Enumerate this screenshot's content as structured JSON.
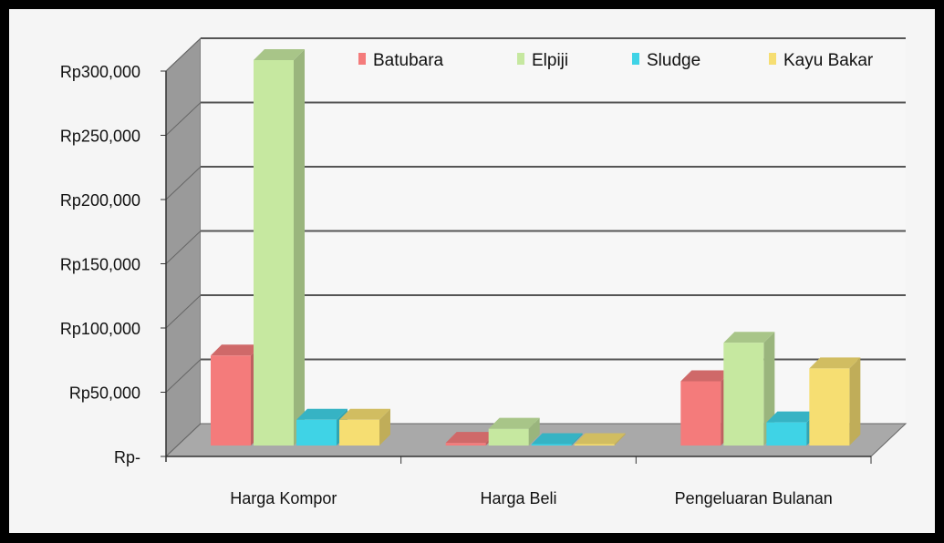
{
  "chart_data": {
    "type": "bar",
    "three_d": true,
    "title": "",
    "xlabel": "",
    "ylabel": "",
    "categories": [
      "Harga Kompor",
      "Harga Beli",
      "Pengeluaran Bulanan"
    ],
    "ylim": [
      0,
      300000
    ],
    "y_ticks": [
      0,
      50000,
      100000,
      150000,
      200000,
      250000,
      300000
    ],
    "y_tick_labels": [
      "Rp-",
      "Rp50,000",
      "Rp100,000",
      "Rp150,000",
      "Rp200,000",
      "Rp250,000",
      "Rp300,000"
    ],
    "grid": true,
    "legend_position": "top-right",
    "series": [
      {
        "name": "Batubara",
        "color": "#f47b7b",
        "values": [
          70000,
          2000,
          50000
        ]
      },
      {
        "name": "Elpiji",
        "color": "#c6e8a0",
        "values": [
          300000,
          13000,
          80000
        ]
      },
      {
        "name": "Sludge",
        "color": "#3fd3e6",
        "values": [
          20000,
          1000,
          18000
        ]
      },
      {
        "name": "Kayu Bakar",
        "color": "#f6de72",
        "values": [
          20000,
          1000,
          60000
        ]
      }
    ]
  }
}
